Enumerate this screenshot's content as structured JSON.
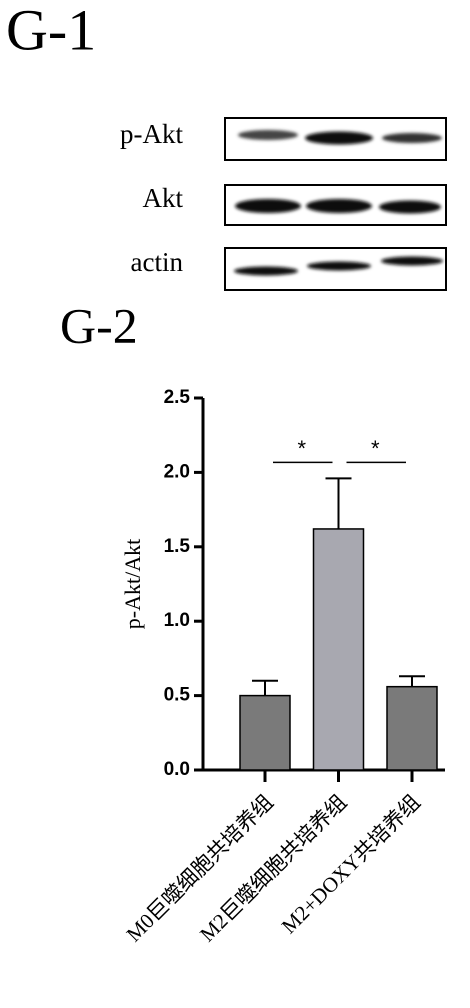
{
  "panel_labels": [
    "G-1",
    "G-2"
  ],
  "blot": {
    "labels": [
      "p-Akt",
      "Akt",
      "actin"
    ]
  },
  "chart_data": {
    "type": "bar",
    "ylabel": "p-Akt/Akt",
    "categories": [
      "M0巨噬细胞共培养组",
      "M2巨噬细胞共培养组",
      "M2+DOXY共培养组"
    ],
    "values": [
      0.5,
      1.62,
      0.56
    ],
    "errors": [
      0.1,
      0.34,
      0.07
    ],
    "colors": [
      "#7a7a7a",
      "#a8a8b0",
      "#7a7a7a"
    ],
    "ylim": [
      0,
      2.5
    ],
    "yticks": [
      {
        "value": 0,
        "label": "0.0"
      },
      0.5,
      {
        "value": 1,
        "label": "1.0"
      },
      1.5,
      {
        "value": 2,
        "label": "2.0"
      },
      2.5
    ],
    "significance": [
      {
        "pair": [
          0,
          1
        ],
        "label": "*"
      },
      {
        "pair": [
          1,
          2
        ],
        "label": "*"
      }
    ]
  }
}
